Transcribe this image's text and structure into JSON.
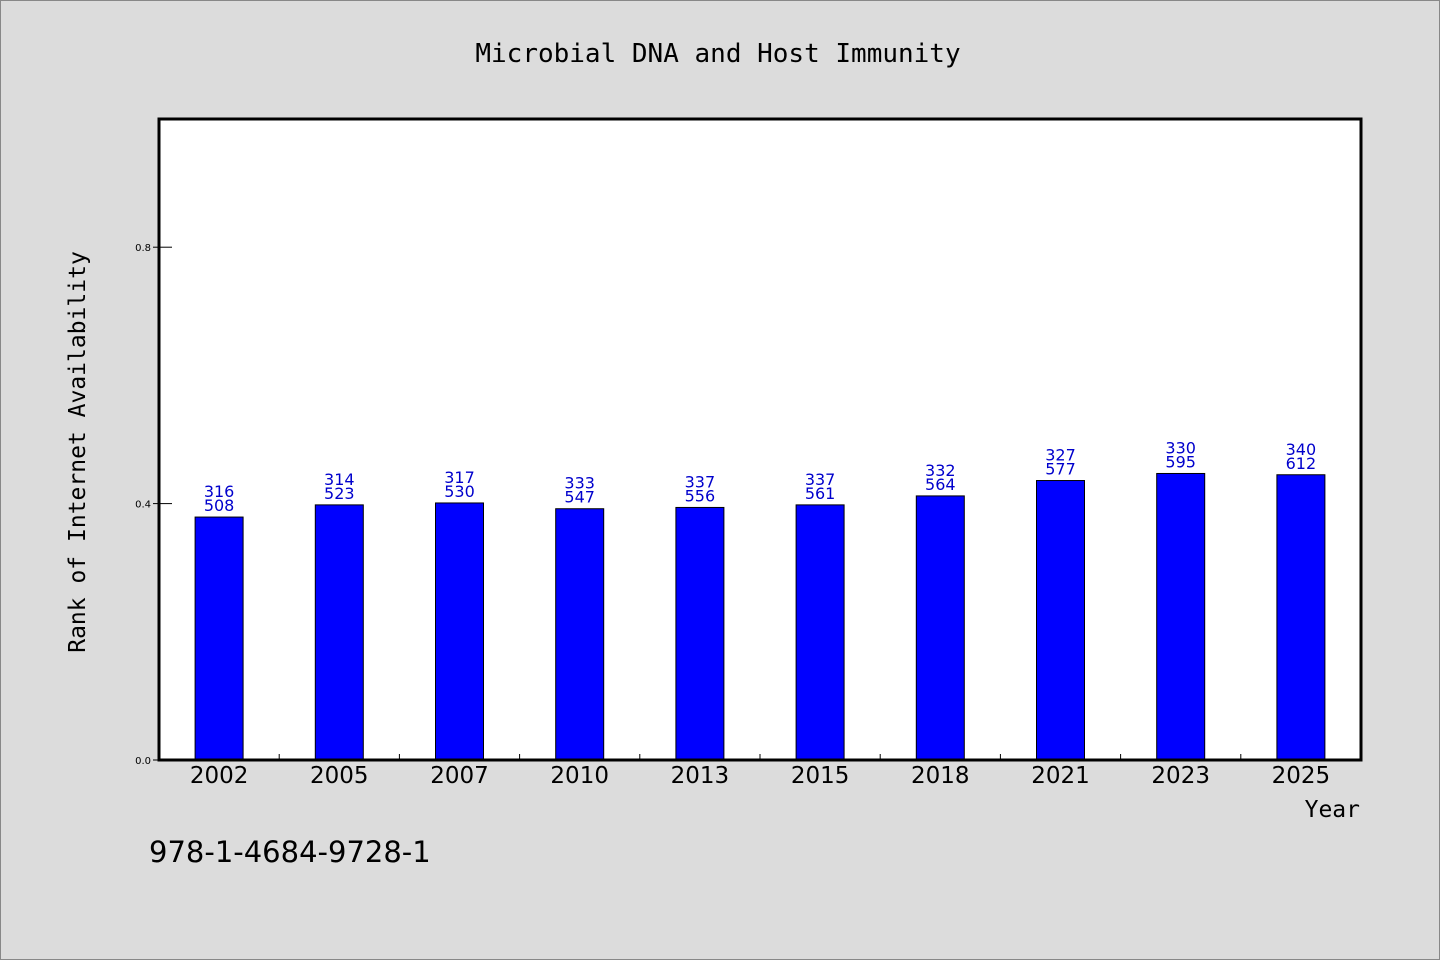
{
  "chart_data": {
    "type": "bar",
    "title": "Microbial DNA and Host Immunity",
    "xlabel": "Year",
    "ylabel": "Rank of Internet Availability",
    "categories": [
      "2002",
      "2005",
      "2007",
      "2010",
      "2013",
      "2015",
      "2018",
      "2021",
      "2023",
      "2025"
    ],
    "values": [
      0.379,
      0.398,
      0.401,
      0.392,
      0.394,
      0.398,
      0.412,
      0.436,
      0.447,
      0.445
    ],
    "data_labels": [
      [
        "316",
        "508"
      ],
      [
        "314",
        "523"
      ],
      [
        "317",
        "530"
      ],
      [
        "333",
        "547"
      ],
      [
        "337",
        "556"
      ],
      [
        "337",
        "561"
      ],
      [
        "332",
        "564"
      ],
      [
        "327",
        "577"
      ],
      [
        "330",
        "595"
      ],
      [
        "340",
        "612"
      ]
    ],
    "yticks": [
      "0.0",
      "0.4",
      "0.8"
    ],
    "ytick_values": [
      0.0,
      0.4,
      0.8
    ],
    "ylim": [
      0,
      1.0
    ],
    "grid": false,
    "colors": {
      "bar": "#0000ff",
      "data_label": "#0000cc",
      "plot_background": "#ffffff",
      "page_background": "#dcdcdc"
    }
  },
  "footer": {
    "isbn": "978-1-4684-9728-1"
  }
}
